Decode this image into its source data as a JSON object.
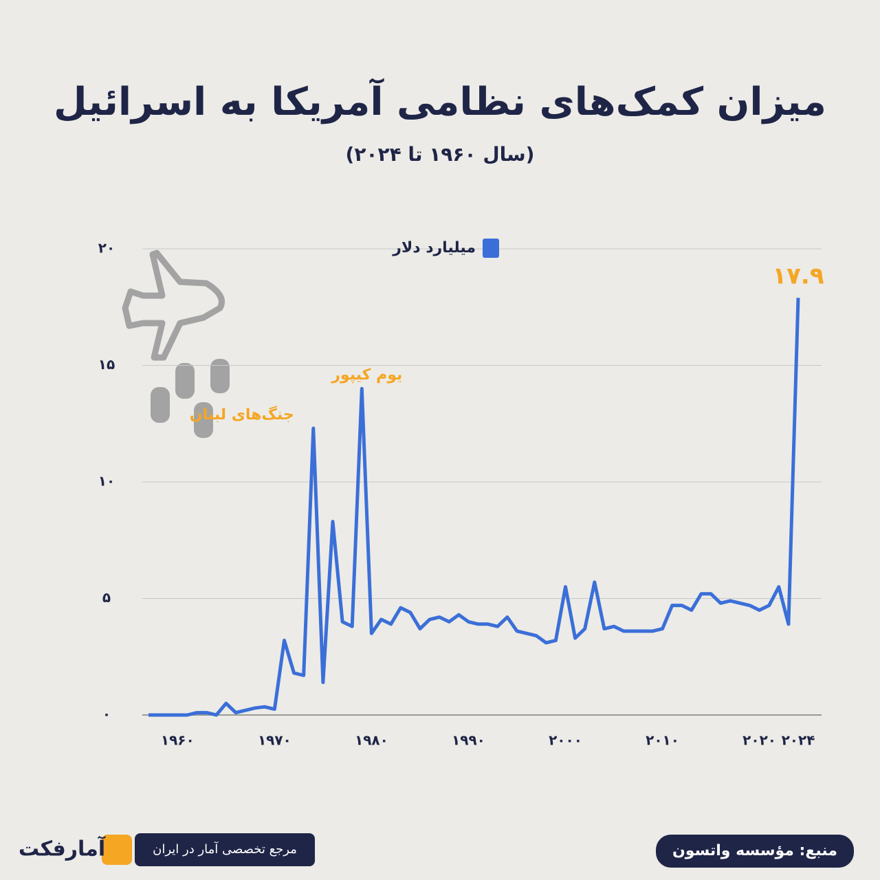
{
  "chart_data": {
    "type": "line",
    "title": "میزان کمک‌های نظامی آمریکا به اسرائیل",
    "subtitle": "(سال ۱۹۶۰ تا ۲۰۲۴)",
    "x": [
      1957,
      1958,
      1959,
      1960,
      1961,
      1962,
      1963,
      1964,
      1965,
      1966,
      1967,
      1968,
      1969,
      1970,
      1971,
      1972,
      1973,
      1974,
      1975,
      1976,
      1977,
      1978,
      1979,
      1980,
      1981,
      1982,
      1983,
      1984,
      1985,
      1986,
      1987,
      1988,
      1989,
      1990,
      1991,
      1992,
      1993,
      1994,
      1995,
      1996,
      1997,
      1998,
      1999,
      2000,
      2001,
      2002,
      2003,
      2004,
      2005,
      2006,
      2007,
      2008,
      2009,
      2010,
      2011,
      2012,
      2013,
      2014,
      2015,
      2016,
      2017,
      2018,
      2019,
      2020,
      2021,
      2022,
      2023,
      2024
    ],
    "series": [
      {
        "name": "میلیارد دلار",
        "color": "#3b6fd8",
        "values": [
          0,
          0,
          0,
          0,
          0,
          0.1,
          0.1,
          0,
          0.5,
          0.1,
          0.2,
          0.3,
          0.35,
          0.25,
          3.2,
          1.8,
          1.7,
          12.3,
          1.4,
          8.3,
          4.0,
          3.8,
          14.0,
          3.5,
          4.1,
          3.9,
          4.6,
          4.4,
          3.7,
          4.1,
          4.2,
          4.0,
          4.3,
          4.0,
          3.9,
          3.9,
          3.8,
          4.2,
          3.6,
          3.5,
          3.4,
          3.1,
          3.2,
          5.5,
          3.3,
          3.7,
          5.7,
          3.7,
          3.8,
          3.6,
          3.6,
          3.6,
          3.6,
          3.7,
          4.7,
          4.7,
          4.5,
          5.2,
          5.2,
          4.8,
          4.9,
          4.8,
          4.7,
          4.5,
          4.7,
          5.5,
          3.9,
          17.9
        ],
        "value_labels": [
          null,
          null,
          null,
          null,
          null,
          null,
          null,
          null,
          null,
          null,
          null,
          null,
          null,
          null,
          null,
          null,
          null,
          null,
          null,
          null,
          null,
          null,
          null,
          null,
          null,
          null,
          null,
          null,
          null,
          null,
          null,
          null,
          null,
          null,
          null,
          null,
          null,
          null,
          null,
          null,
          null,
          null,
          null,
          null,
          null,
          null,
          null,
          null,
          null,
          null,
          null,
          null,
          null,
          null,
          null,
          null,
          null,
          null,
          null,
          null,
          null,
          null,
          null,
          null,
          null,
          null,
          null,
          "۱۷.۹"
        ]
      }
    ],
    "xlim": [
      1957,
      2024
    ],
    "xticks": [
      {
        "value": 1960,
        "label": "۱۹۶۰"
      },
      {
        "value": 1970,
        "label": "۱۹۷۰"
      },
      {
        "value": 1980,
        "label": "۱۹۸۰"
      },
      {
        "value": 1990,
        "label": "۱۹۹۰"
      },
      {
        "value": 2000,
        "label": "۲۰۰۰"
      },
      {
        "value": 2010,
        "label": "۲۰۱۰"
      },
      {
        "value": 2020,
        "label": "۲۰۲۰"
      },
      {
        "value": 2024,
        "label": "۲۰۲۴"
      }
    ],
    "ylim": [
      0,
      20
    ],
    "yticks": [
      {
        "value": 0,
        "label": "۰"
      },
      {
        "value": 5,
        "label": "۵"
      },
      {
        "value": 10,
        "label": "۱۰"
      },
      {
        "value": 15,
        "label": "۱۵"
      },
      {
        "value": 20,
        "label": "۲۰"
      }
    ],
    "grid": true,
    "annotations": [
      {
        "text": "یوم کیپور",
        "x": 1979
      },
      {
        "text": "جنگ‌های لبنان",
        "x": 1974
      }
    ],
    "source": "منبع: مؤسسه واتسون",
    "tagline": "مرجع تخصصی آمار در ایران",
    "brand": "آمارفکت"
  }
}
